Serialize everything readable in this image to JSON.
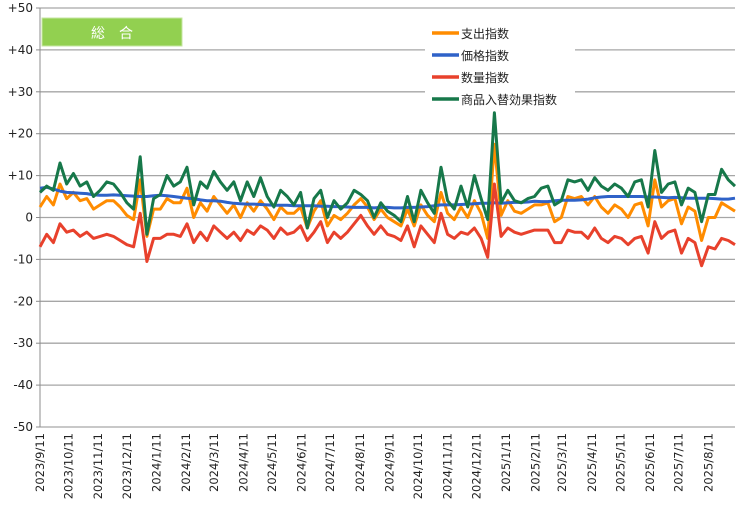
{
  "chart_data": {
    "type": "line",
    "title": "総　合",
    "xlabel": "",
    "ylabel": "",
    "ylim": [
      -50,
      50
    ],
    "yticks": [
      "+50",
      "+40",
      "+30",
      "+20",
      "+10",
      "0",
      "-10",
      "-20",
      "-30",
      "-40",
      "-50"
    ],
    "ytick_values": [
      50,
      40,
      30,
      20,
      10,
      0,
      -10,
      -20,
      -30,
      -40,
      -50
    ],
    "grid": true,
    "legend_position": "top-center",
    "x_start": "2023/9/11",
    "x_step_days": 7,
    "x_tick_labels": [
      "2023/9/11",
      "2023/10/11",
      "2023/11/11",
      "2023/12/11",
      "2024/1/11",
      "2024/2/11",
      "2024/3/11",
      "2024/4/11",
      "2024/5/11",
      "2024/6/11",
      "2024/7/11",
      "2024/8/11",
      "2024/9/11",
      "2024/10/11",
      "2024/11/11",
      "2024/12/11",
      "2025/1/11",
      "2025/2/11",
      "2025/3/11",
      "2025/4/11",
      "2025/5/11",
      "2025/6/11",
      "2025/7/11",
      "2025/8/11"
    ],
    "series": [
      {
        "name": "支出指数",
        "color": "#FF8C00",
        "values": [
          2.5,
          5,
          3,
          8,
          4.5,
          6,
          4,
          4.5,
          2,
          3,
          4,
          4,
          2.5,
          0.5,
          -0.5,
          9,
          -4.5,
          2,
          2,
          4.5,
          3.5,
          3.5,
          7,
          0,
          3.5,
          1.5,
          5,
          3,
          1,
          3,
          0,
          3.5,
          1.5,
          4,
          2,
          -0.5,
          2.5,
          1,
          1,
          2.5,
          -2.5,
          1.5,
          4,
          -2,
          0.5,
          -0.5,
          1,
          3,
          4.5,
          2.5,
          -0.5,
          2,
          0,
          -1,
          -2,
          2,
          -2,
          3,
          0.5,
          -1,
          6,
          1,
          -0.5,
          2.5,
          0,
          4,
          1,
          -5,
          17.5,
          0.5,
          4,
          1.5,
          1,
          2,
          3,
          3,
          3.5,
          -1,
          0,
          5,
          4.5,
          5,
          3,
          5,
          2.5,
          1,
          3,
          2,
          0,
          3,
          3.5,
          -2,
          9,
          2.5,
          4,
          4.5,
          -1.5,
          2.5,
          1.5,
          -5.5,
          0,
          0,
          3.5,
          2.5,
          1.5
        ]
      },
      {
        "name": "価格指数",
        "color": "#2F62C8",
        "values": [
          7,
          7.2,
          6.8,
          6.3,
          6,
          5.9,
          5.8,
          5.7,
          5.4,
          5.3,
          5.3,
          5.4,
          5.3,
          5.2,
          5.1,
          5,
          5,
          5.2,
          5.3,
          5.2,
          5,
          4.8,
          4.6,
          4.5,
          4.2,
          4,
          4,
          3.9,
          3.6,
          3.4,
          3.3,
          3.2,
          3.2,
          3.1,
          3,
          2.9,
          2.9,
          2.9,
          2.8,
          2.8,
          2.8,
          2.8,
          2.7,
          2.7,
          2.6,
          2.6,
          2.5,
          2.4,
          2.4,
          2.4,
          2.3,
          2.4,
          2.4,
          2.3,
          2.3,
          2.4,
          2.4,
          2.5,
          2.6,
          2.8,
          3,
          3,
          3,
          3.1,
          3.2,
          3.3,
          3.4,
          3.4,
          3.5,
          3.4,
          3.5,
          3.6,
          3.6,
          3.7,
          3.9,
          3.8,
          3.8,
          4,
          4.1,
          4.1,
          4.1,
          4.2,
          4.4,
          4.7,
          4.9,
          5,
          5,
          5,
          5,
          5,
          5,
          4.9,
          4.9,
          4.8,
          4.7,
          4.8,
          4.7,
          4.6,
          4.6,
          4.6,
          4.6,
          4.5,
          4.4,
          4.4,
          4.6
        ]
      },
      {
        "name": "数量指数",
        "color": "#E8412C",
        "values": [
          -7,
          -4,
          -6,
          -1.5,
          -3.5,
          -3,
          -4.5,
          -3.5,
          -5,
          -4.5,
          -4,
          -4.5,
          -5.5,
          -6.5,
          -7,
          1,
          -10.5,
          -5,
          -5,
          -4,
          -4,
          -4.5,
          -1.5,
          -6,
          -3.5,
          -5.5,
          -2,
          -3.5,
          -5,
          -3.5,
          -5.5,
          -3,
          -4,
          -2,
          -3,
          -5,
          -2.5,
          -4,
          -3.5,
          -2,
          -5.5,
          -3.5,
          -1,
          -6,
          -3.5,
          -5,
          -3.5,
          -1.5,
          0.5,
          -2,
          -4,
          -2,
          -4,
          -4.5,
          -5.5,
          -2,
          -7,
          -2,
          -4,
          -6,
          1,
          -4,
          -5,
          -3.5,
          -4,
          -2.5,
          -5,
          -9.5,
          8,
          -4.5,
          -2.5,
          -3.5,
          -4,
          -3.5,
          -3,
          -3,
          -3,
          -6,
          -6,
          -3,
          -3.5,
          -3.5,
          -5,
          -2.5,
          -5,
          -6,
          -4.5,
          -5,
          -6.5,
          -5,
          -4.5,
          -8.5,
          -1,
          -5,
          -3.5,
          -3,
          -8.5,
          -5,
          -6,
          -11.5,
          -7,
          -7.5,
          -5,
          -5.5,
          -6.5
        ]
      },
      {
        "name": "商品入替効果指数",
        "color": "#17784A",
        "values": [
          6,
          7.5,
          6.5,
          13,
          8,
          10.5,
          7.5,
          8.5,
          5,
          6.5,
          8.5,
          8,
          6,
          3.5,
          2,
          14.5,
          -4,
          4.5,
          5.5,
          10,
          7.5,
          8.5,
          12,
          3,
          8.5,
          7,
          11,
          8.5,
          6.5,
          8.5,
          4,
          8.5,
          5,
          9.5,
          5,
          2.5,
          6.5,
          5,
          3,
          6,
          -2.5,
          4.5,
          6.5,
          0,
          4,
          2,
          3.5,
          6.5,
          5.5,
          4,
          0,
          3.5,
          1.5,
          0.5,
          -1,
          5,
          -1,
          6.5,
          3.5,
          1,
          12,
          4,
          2,
          7.5,
          2.5,
          10,
          4.5,
          -0.5,
          25,
          3.5,
          6.5,
          4,
          3.5,
          4.5,
          5,
          7,
          7.5,
          3,
          4,
          9,
          8.5,
          9,
          6.5,
          9.5,
          7.5,
          6.5,
          8,
          7,
          5,
          8.5,
          9,
          2.5,
          16,
          6,
          8,
          8.5,
          3,
          7,
          6,
          -1,
          5.5,
          5.5,
          11.5,
          9,
          7.5
        ]
      }
    ]
  }
}
